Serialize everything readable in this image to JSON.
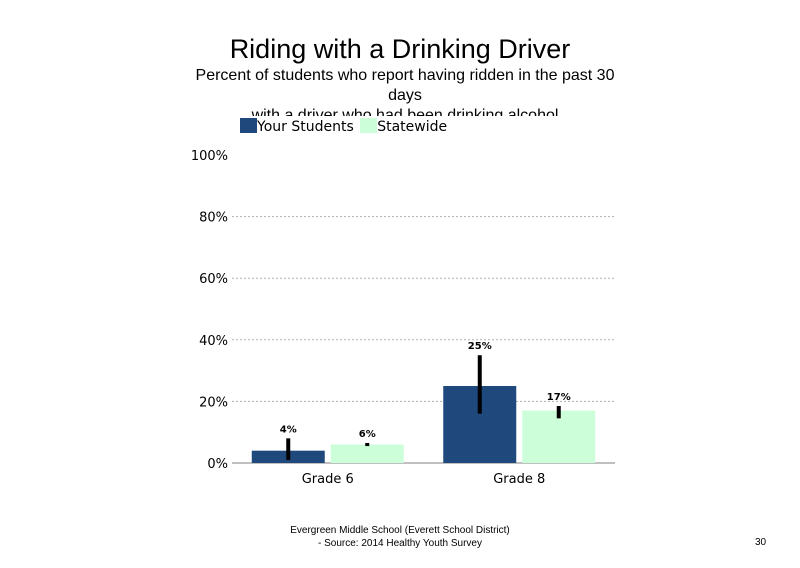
{
  "title": "Riding with a Drinking Driver",
  "subtitle_lines": [
    "Percent of students who report having ridden in the past 30",
    "days",
    "with a driver who had been drinking alcohol"
  ],
  "legend": [
    {
      "label": "Your Students",
      "color": "#1f497d"
    },
    {
      "label": "Statewide",
      "color": "#ccffd9"
    }
  ],
  "chart_data": {
    "type": "bar",
    "categories": [
      "Grade 6",
      "Grade 8"
    ],
    "series": [
      {
        "name": "Your Students",
        "color": "#1f497d",
        "values": [
          4,
          25
        ],
        "labels": [
          "4%",
          "25%"
        ],
        "error": [
          [
            1,
            8
          ],
          [
            16,
            35
          ]
        ]
      },
      {
        "name": "Statewide",
        "color": "#ccffd9",
        "values": [
          6,
          17
        ],
        "labels": [
          "6%",
          "17%"
        ],
        "error": [
          [
            5.5,
            6.5
          ],
          [
            14.5,
            18.5
          ]
        ]
      }
    ],
    "yticks": [
      "0%",
      "20%",
      "40%",
      "60%",
      "80%",
      "100%"
    ],
    "ylim": [
      0,
      100
    ],
    "grid": true,
    "legend_position": "top-left"
  },
  "footer": {
    "line1": "Evergreen Middle School (Everett School District)",
    "line2": "- Source: 2014 Healthy Youth Survey"
  },
  "page_number": "30"
}
